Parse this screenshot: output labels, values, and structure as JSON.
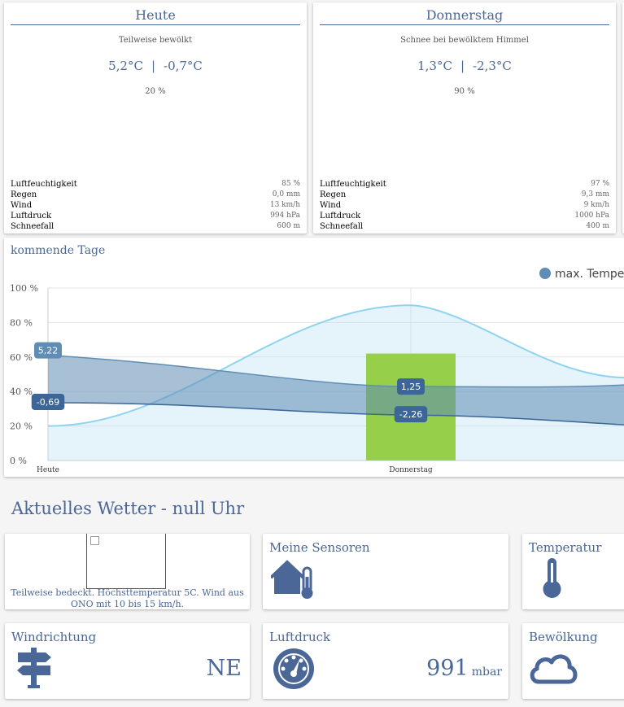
{
  "days": [
    {
      "title": "Heute",
      "condition": "Teilweise bewölkt",
      "temp_max": "5,2°C",
      "temp_min": "-0,7°C",
      "separator": "|",
      "rain_chance": "20 %",
      "stats": [
        {
          "label": "Luftfeuchtigkeit",
          "value": "85 %"
        },
        {
          "label": "Regen",
          "value": "0,0 mm"
        },
        {
          "label": "Wind",
          "value": "13 km/h"
        },
        {
          "label": "Luftdruck",
          "value": "994 hPa"
        },
        {
          "label": "Schneefall",
          "value": "600 m"
        }
      ]
    },
    {
      "title": "Donnerstag",
      "condition": "Schnee bei bewölktem Himmel",
      "temp_max": "1,3°C",
      "temp_min": "-2,3°C",
      "separator": "|",
      "rain_chance": "90 %",
      "stats": [
        {
          "label": "Luftfeuchtigkeit",
          "value": "97 %"
        },
        {
          "label": "Regen",
          "value": "9,3 mm"
        },
        {
          "label": "Wind",
          "value": "9 km/h"
        },
        {
          "label": "Luftdruck",
          "value": "1000 hPa"
        },
        {
          "label": "Schneefall",
          "value": "400 m"
        }
      ]
    }
  ],
  "forecast_chart": {
    "title": "kommende Tage",
    "legend_label": "max. Temper"
  },
  "chart_data": {
    "type": "area",
    "categories": [
      "Heute",
      "Donnerstag"
    ],
    "y_tick_labels": [
      "0 %",
      "20 %",
      "40 %",
      "60 %",
      "80 %",
      "100 %"
    ],
    "ylim": [
      0,
      100
    ],
    "grid": "y",
    "legend": "top-right",
    "series": [
      {
        "name": "max. Temper",
        "type": "range-upper",
        "values": [
          5.22,
          1.25
        ],
        "labels": [
          "5,22",
          "1,25"
        ],
        "color": "#5f8db4"
      },
      {
        "type": "range-lower",
        "values": [
          -0.69,
          -2.26
        ],
        "labels": [
          "-0,69",
          "-2,26"
        ],
        "color": "#3c6598"
      },
      {
        "type": "area",
        "values": [
          20,
          90
        ],
        "color": "#a9dcf2"
      },
      {
        "type": "bar",
        "values": [
          null,
          62
        ],
        "color": "#8fca00"
      }
    ]
  },
  "current": {
    "title": "Aktuelles Wetter - null Uhr",
    "weather_text": "Teilweise bedeckt. Höchsttemperatur 5C. Wind aus ONO mit 10 bis 15 km/h.",
    "sensors_title": "Meine Sensoren",
    "temperature_title": "Temperatur",
    "wind_title": "Windrichtung",
    "wind_value": "NE",
    "pressure_title": "Luftdruck",
    "pressure_value": "991",
    "pressure_unit": "mbar",
    "clouds_title": "Bewölkung"
  },
  "colors": {
    "accent": "#4a6798",
    "bar": "#8fca00",
    "area": "#a9dcf2",
    "band": "#5f8db4"
  }
}
